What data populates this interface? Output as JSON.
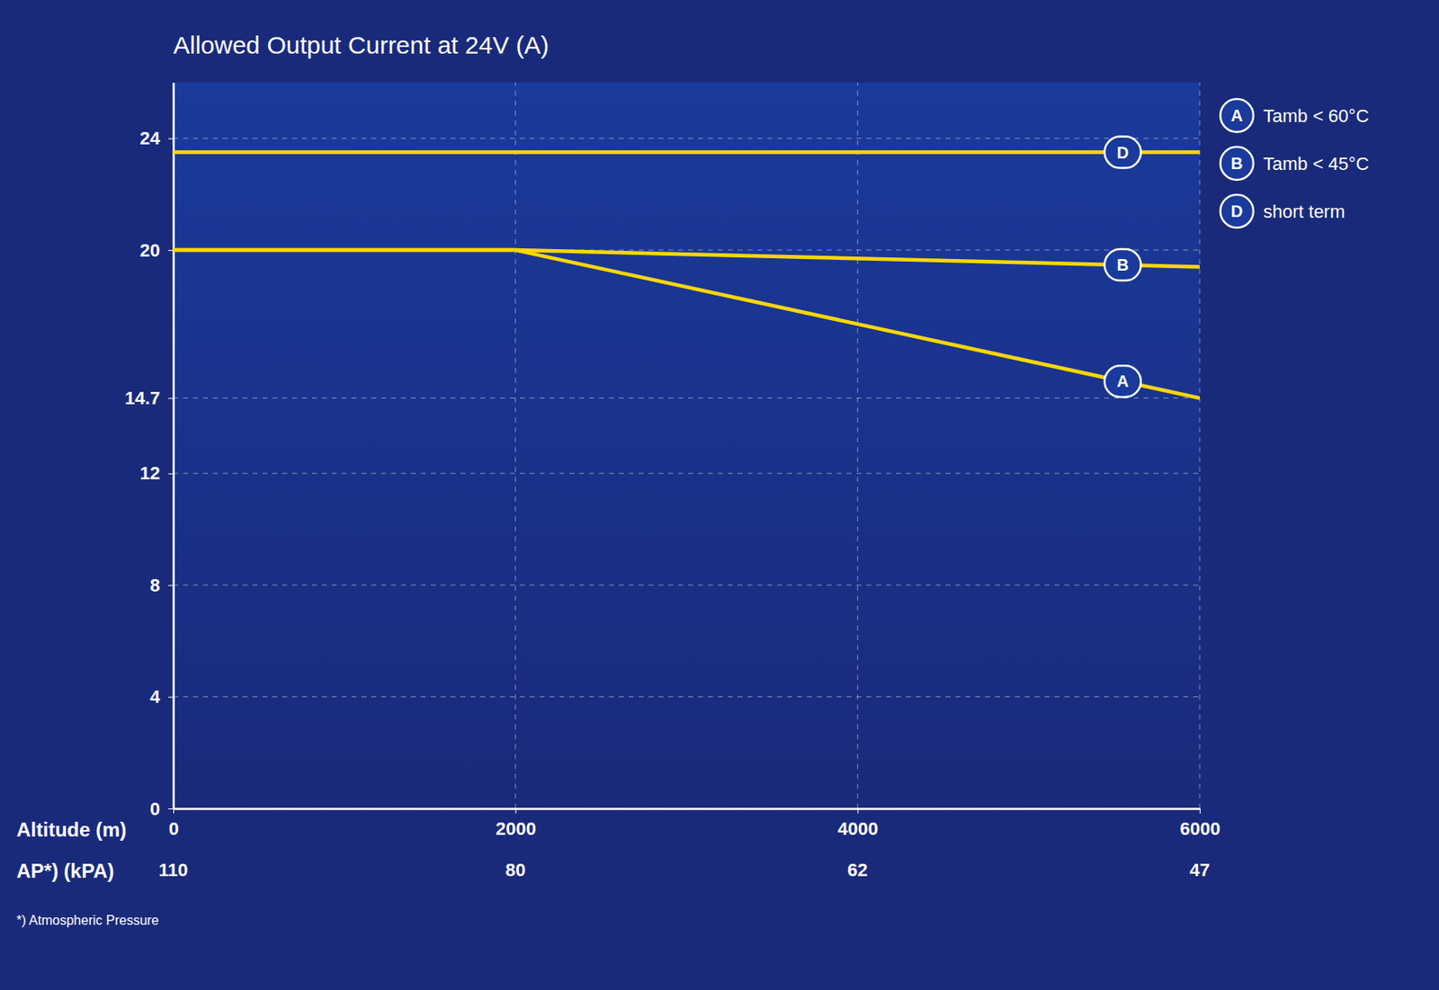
{
  "chart_data": {
    "type": "line",
    "title": "Allowed Output Current at 24V (A)",
    "xlabel": "Altitude (m)",
    "x2label": "AP*) (kPA)",
    "footnote": "*) Atmospheric Pressure",
    "xlim": [
      0,
      6000
    ],
    "xticks": [
      0,
      2000,
      4000,
      6000
    ],
    "x2ticks": [
      {
        "value": 0,
        "label": "110"
      },
      {
        "value": 2000,
        "label": "80"
      },
      {
        "value": 4000,
        "label": "62"
      },
      {
        "value": 6000,
        "label": "47"
      }
    ],
    "ylim": [
      0,
      26
    ],
    "yticks": [
      0,
      4,
      8,
      12,
      14.7,
      20,
      24
    ],
    "grid": true,
    "series": [
      {
        "name": "Tamb < 60°C",
        "label": "A",
        "color": "#FFD700",
        "x": [
          0,
          2000,
          6000
        ],
        "values": [
          20.0,
          20.0,
          14.7
        ]
      },
      {
        "name": "Tamb < 45°C",
        "label": "B",
        "color": "#FFD700",
        "x": [
          0,
          2000,
          6000
        ],
        "values": [
          20.0,
          20.0,
          19.4
        ]
      },
      {
        "name": "short term",
        "label": "D",
        "color": "#FFD700",
        "x": [
          0,
          6000
        ],
        "values": [
          23.5,
          23.5
        ]
      }
    ]
  }
}
